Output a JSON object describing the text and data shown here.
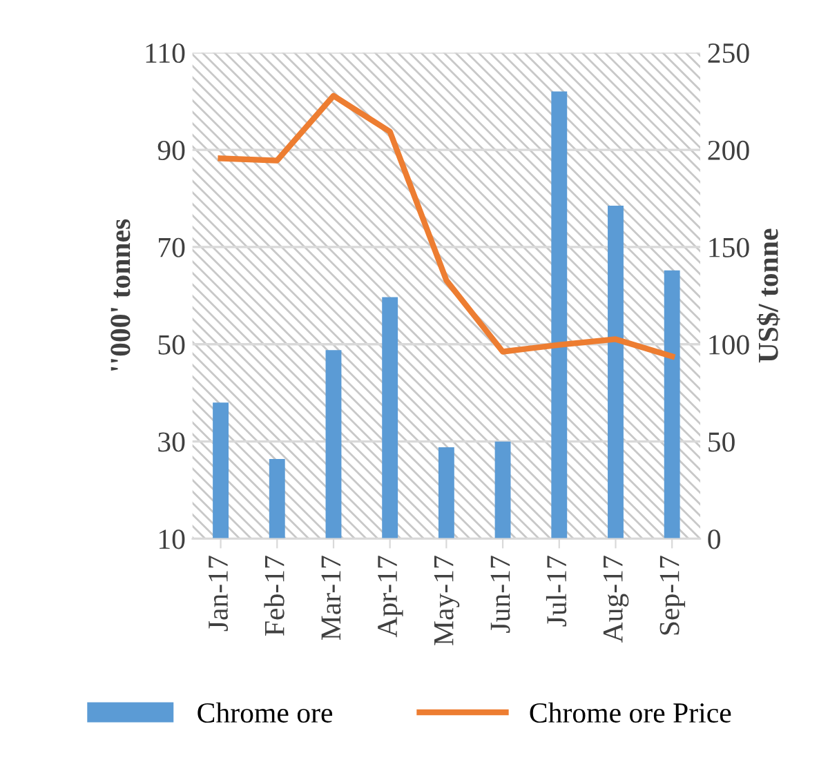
{
  "chart_data": {
    "type": "bar",
    "categories": [
      "Jan-17",
      "Feb-17",
      "Mar-17",
      "Apr-17",
      "May-17",
      "Jun-17",
      "Jul-17",
      "Aug-17",
      "Sep-17"
    ],
    "series": [
      {
        "name": "Chrome ore",
        "color": "#5b9bd5",
        "values": [
          38,
          26.4,
          48.8,
          59.7,
          28.8,
          30,
          102,
          78.5,
          65.2
        ]
      },
      {
        "name": "Chrome ore Price",
        "type": "line",
        "axis": "y2",
        "color": "#ed7d31",
        "values": [
          195.6,
          194.5,
          227.8,
          209.3,
          132.9,
          96.2,
          99.7,
          102.6,
          93.8
        ]
      }
    ],
    "ylabel": "''000' tonnes",
    "y2label": "US$/ tonne",
    "ylim": [
      10,
      110
    ],
    "yticks": [
      10,
      30,
      50,
      70,
      90,
      110
    ],
    "y2lim": [
      0,
      250
    ],
    "y2ticks": [
      0,
      50,
      100,
      150,
      200,
      250
    ],
    "grid": "y",
    "legend": "bottom",
    "marker": "none"
  }
}
